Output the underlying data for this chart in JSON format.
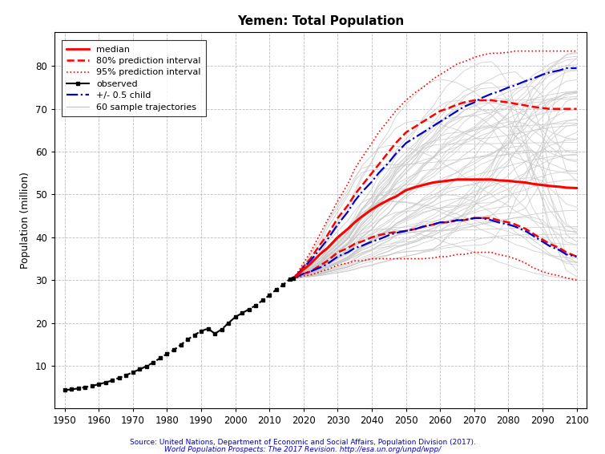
{
  "title": "Yemen: Total Population",
  "ylabel": "Population (million)",
  "xlabel": "",
  "source_line1": "Source: United Nations, Department of Economic and Social Affairs, Population Division (2017).",
  "source_line2": "World Population Prospects: The 2017 Revision. http://esa.un.org/unpd/wpp/",
  "xlim": [
    1947,
    2103
  ],
  "ylim": [
    0,
    88
  ],
  "yticks": [
    10,
    20,
    30,
    40,
    50,
    60,
    70,
    80
  ],
  "xticks": [
    1950,
    1960,
    1970,
    1980,
    1990,
    2000,
    2010,
    2020,
    2030,
    2040,
    2050,
    2060,
    2070,
    2080,
    2090,
    2100
  ],
  "observed_years": [
    1950,
    1952,
    1954,
    1956,
    1958,
    1960,
    1962,
    1964,
    1966,
    1968,
    1970,
    1972,
    1974,
    1976,
    1978,
    1980,
    1982,
    1984,
    1986,
    1988,
    1990,
    1992,
    1994,
    1996,
    1998,
    2000,
    2002,
    2004,
    2006,
    2008,
    2010,
    2012,
    2014,
    2016,
    2017
  ],
  "observed_pop": [
    4.3,
    4.5,
    4.7,
    5.0,
    5.3,
    5.7,
    6.1,
    6.6,
    7.2,
    7.8,
    8.5,
    9.2,
    9.9,
    10.8,
    11.8,
    12.8,
    13.7,
    14.9,
    16.1,
    17.2,
    18.1,
    18.7,
    17.5,
    18.5,
    20.0,
    21.4,
    22.3,
    23.2,
    24.1,
    25.3,
    26.5,
    27.8,
    28.9,
    30.3,
    30.5
  ],
  "proj_years": [
    2017,
    2018,
    2020,
    2022,
    2025,
    2027,
    2030,
    2033,
    2035,
    2037,
    2040,
    2042,
    2045,
    2047,
    2050,
    2053,
    2055,
    2058,
    2060,
    2062,
    2065,
    2067,
    2070,
    2072,
    2075,
    2077,
    2080,
    2082,
    2085,
    2087,
    2090,
    2092,
    2095,
    2097,
    2100
  ],
  "median": [
    30.5,
    31.0,
    32.5,
    33.8,
    36.2,
    37.5,
    40.0,
    42.0,
    43.5,
    44.8,
    46.5,
    47.5,
    48.8,
    49.5,
    51.0,
    51.8,
    52.2,
    52.8,
    53.0,
    53.2,
    53.5,
    53.5,
    53.5,
    53.5,
    53.5,
    53.3,
    53.2,
    53.0,
    52.8,
    52.5,
    52.2,
    52.0,
    51.8,
    51.6,
    51.5
  ],
  "pi80_upper": [
    30.5,
    31.2,
    33.2,
    35.0,
    38.5,
    40.5,
    44.5,
    47.5,
    50.0,
    52.0,
    55.0,
    57.0,
    60.0,
    62.0,
    64.5,
    66.0,
    67.0,
    68.5,
    69.5,
    70.0,
    71.0,
    71.5,
    72.0,
    72.0,
    72.0,
    71.8,
    71.5,
    71.2,
    70.8,
    70.5,
    70.2,
    70.0,
    70.0,
    70.0,
    70.0
  ],
  "pi80_lower": [
    30.5,
    30.8,
    31.5,
    32.0,
    33.5,
    34.5,
    36.5,
    37.5,
    38.5,
    39.0,
    40.0,
    40.5,
    41.0,
    41.2,
    41.5,
    42.0,
    42.5,
    43.0,
    43.5,
    43.5,
    44.0,
    44.0,
    44.5,
    44.5,
    44.5,
    44.0,
    43.5,
    43.0,
    42.0,
    41.0,
    39.5,
    38.5,
    37.5,
    36.5,
    35.5
  ],
  "pi95_upper": [
    30.5,
    31.5,
    34.0,
    36.5,
    41.0,
    44.0,
    48.5,
    52.5,
    56.0,
    58.5,
    62.0,
    64.5,
    67.5,
    69.5,
    72.0,
    74.0,
    75.0,
    77.0,
    78.0,
    79.0,
    80.5,
    81.0,
    82.0,
    82.5,
    83.0,
    83.0,
    83.2,
    83.5,
    83.5,
    83.5,
    83.5,
    83.5,
    83.5,
    83.5,
    83.5
  ],
  "pi95_lower": [
    30.5,
    30.5,
    31.0,
    31.2,
    32.0,
    32.5,
    33.5,
    34.0,
    34.5,
    34.5,
    35.0,
    35.0,
    35.0,
    35.0,
    35.0,
    35.0,
    35.0,
    35.2,
    35.5,
    35.5,
    36.0,
    36.0,
    36.5,
    36.5,
    36.5,
    36.0,
    35.5,
    35.0,
    34.0,
    33.0,
    32.0,
    31.5,
    31.0,
    30.5,
    30.0
  ],
  "half_child_upper": [
    30.5,
    31.2,
    33.0,
    34.5,
    37.5,
    39.5,
    43.0,
    46.0,
    48.5,
    50.5,
    53.0,
    55.0,
    57.5,
    59.5,
    62.0,
    63.5,
    64.5,
    66.0,
    67.0,
    68.0,
    69.5,
    70.5,
    71.5,
    72.5,
    73.5,
    74.0,
    75.0,
    75.5,
    76.5,
    77.0,
    78.0,
    78.5,
    79.0,
    79.5,
    79.5
  ],
  "half_child_lower": [
    30.5,
    30.8,
    31.5,
    32.0,
    33.0,
    33.8,
    35.5,
    36.5,
    37.5,
    38.0,
    39.0,
    39.5,
    40.5,
    41.0,
    41.5,
    42.0,
    42.5,
    43.0,
    43.5,
    43.5,
    44.0,
    44.0,
    44.5,
    44.5,
    44.0,
    43.5,
    43.0,
    42.5,
    41.5,
    40.5,
    39.0,
    38.0,
    37.0,
    36.0,
    35.5
  ],
  "background_color": "#ffffff",
  "grid_color": "#bebebe",
  "observed_color": "#000000",
  "median_color": "#ff0000",
  "pi80_color": "#ff0000",
  "pi95_color": "#ff0000",
  "half_child_color": "#0000cd",
  "sample_color": "#c8c8c8",
  "n_samples": 60
}
